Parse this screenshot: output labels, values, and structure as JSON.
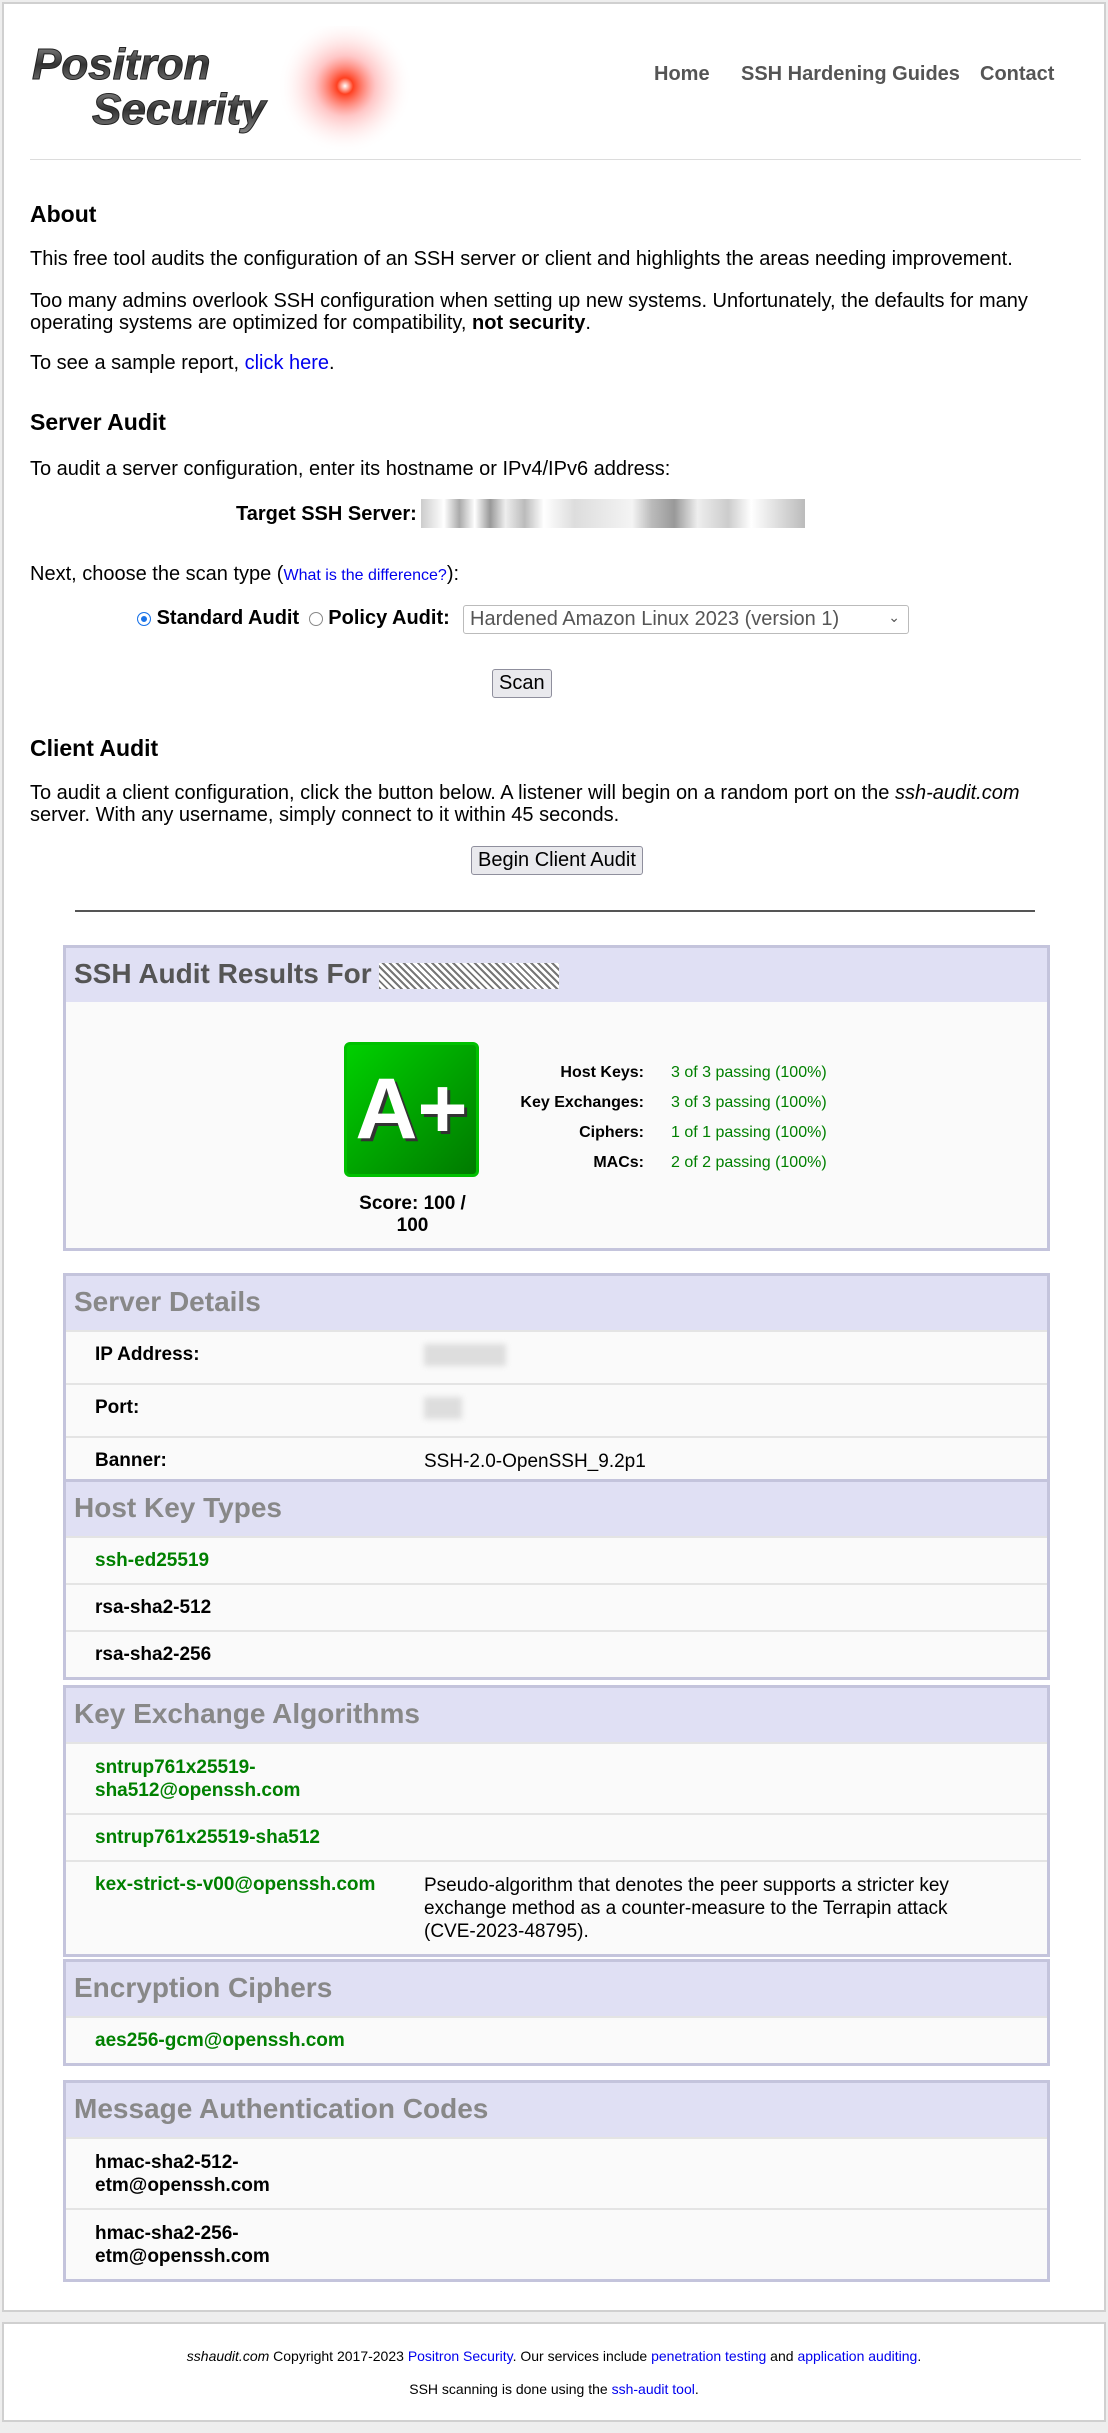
{
  "logo": {
    "line1": "Positron",
    "line2": "Security"
  },
  "nav": [
    {
      "label": "Home"
    },
    {
      "label": "SSH Hardening Guides"
    },
    {
      "label": "Contact"
    }
  ],
  "about": {
    "title": "About",
    "p1": "This free tool audits the configuration of an SSH server or client and highlights the areas needing improvement.",
    "p2a": "Too many admins overlook SSH configuration when setting up new systems. Unfortunately, the defaults for many operating systems are optimized for compatibility, ",
    "p2b": "not security",
    "p2c": ".",
    "p3a": "To see a sample report, ",
    "p3link": "click here",
    "p3c": "."
  },
  "server_audit": {
    "title": "Server Audit",
    "intro": "To audit a server configuration, enter its hostname or IPv4/IPv6 address:",
    "target_label": "Target SSH Server:",
    "scan_type_a": "Next, choose the scan type (",
    "scan_type_link": "What is the difference?",
    "scan_type_c": "):",
    "standard_label": "Standard Audit",
    "policy_label": "Policy Audit:",
    "policy_selected": "Hardened Amazon Linux 2023 (version 1)",
    "scan_button": "Scan"
  },
  "client_audit": {
    "title": "Client Audit",
    "p_a": "To audit a client configuration, click the button below. A listener will begin on a random port on the ",
    "p_em": "ssh-audit.com",
    "p_c": " server. With any username, simply connect to it within 45 seconds.",
    "button": "Begin Client Audit"
  },
  "results": {
    "title": "SSH Audit Results For",
    "grade": "A+",
    "score": "Score: 100 / 100",
    "grade_color": "#00aa00",
    "stats": [
      {
        "label": "Host Keys:",
        "value": "3 of 3 passing (100%)"
      },
      {
        "label": "Key Exchanges:",
        "value": "3 of 3 passing (100%)"
      },
      {
        "label": "Ciphers:",
        "value": "1 of 1 passing (100%)"
      },
      {
        "label": "MACs:",
        "value": "2 of 2 passing (100%)"
      }
    ]
  },
  "server_details": {
    "title": "Server Details",
    "rows": [
      {
        "label": "IP Address:"
      },
      {
        "label": "Port:"
      },
      {
        "label": "Banner:",
        "value": "SSH-2.0-OpenSSH_9.2p1"
      }
    ]
  },
  "host_keys": {
    "title": "Host Key Types",
    "items": [
      {
        "name": "ssh-ed25519",
        "status": "good"
      },
      {
        "name": "rsa-sha2-512",
        "status": "neutral"
      },
      {
        "name": "rsa-sha2-256",
        "status": "neutral"
      }
    ]
  },
  "kex": {
    "title": "Key Exchange Algorithms",
    "items": [
      {
        "name": "sntrup761x25519-sha512@openssh.com",
        "status": "good"
      },
      {
        "name": "sntrup761x25519-sha512",
        "status": "good"
      },
      {
        "name": "kex-strict-s-v00@openssh.com",
        "status": "good",
        "desc": "Pseudo-algorithm that denotes the peer supports a stricter key exchange method as a counter-measure to the Terrapin attack (CVE-2023-48795)."
      }
    ]
  },
  "ciphers": {
    "title": "Encryption Ciphers",
    "items": [
      {
        "name": "aes256-gcm@openssh.com",
        "status": "good"
      }
    ]
  },
  "macs": {
    "title": "Message Authentication Codes",
    "items": [
      {
        "name": "hmac-sha2-512-etm@openssh.com",
        "status": "neutral"
      },
      {
        "name": "hmac-sha2-256-etm@openssh.com",
        "status": "neutral"
      }
    ]
  },
  "footer": {
    "site": "sshaudit.com",
    "copy": " Copyright 2017-2023 ",
    "company": "Positron Security",
    "services": ". Our services include ",
    "pentest": "penetration testing",
    "and": " and ",
    "appaudit": "application auditing",
    "end": ".",
    "line2a": "SSH scanning is done using the ",
    "line2link": "ssh-audit tool",
    "line2c": "."
  }
}
